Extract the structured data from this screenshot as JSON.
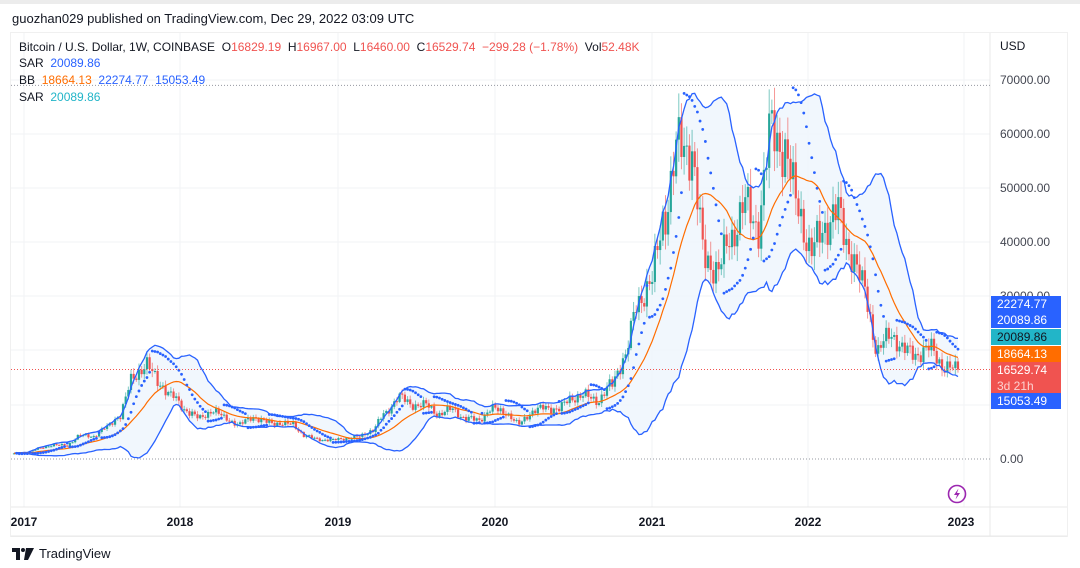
{
  "header": {
    "publisher": "guozhan029 published on TradingView.com, Dec 29, 2022 03:09 UTC"
  },
  "legend": {
    "symbol": "Bitcoin / U.S. Dollar, 1W, COINBASE",
    "o_label": "O",
    "o": "16829.19",
    "h_label": "H",
    "h": "16967.00",
    "l_label": "L",
    "l": "16460.00",
    "c_label": "C",
    "c": "16529.74",
    "change": "−299.28 (−1.78%)",
    "vol_label": "Vol",
    "vol": "52.48K",
    "sar1_label": "SAR",
    "sar1": "20089.86",
    "bb_label": "BB",
    "bb_basis": "18664.13",
    "bb_upper": "22274.77",
    "bb_lower": "15053.49",
    "sar2_label": "SAR",
    "sar2": "20089.86"
  },
  "price_axis": {
    "currency": "USD",
    "ticks": [
      "70000.00",
      "60000.00",
      "50000.00",
      "40000.00",
      "0.00"
    ],
    "hidden_tick": "30000.00",
    "tags": [
      {
        "value": "22274.77",
        "color": "#2962ff",
        "text_color": "#ffffff"
      },
      {
        "value": "20089.86",
        "color": "#2962ff",
        "text_color": "#ffffff"
      },
      {
        "value": "20089.86",
        "color": "#22b5c8",
        "text_color": "#131722"
      },
      {
        "value": "18664.13",
        "color": "#ff6d00",
        "text_color": "#ffffff"
      },
      {
        "value": "16529.74",
        "color": "#f05350",
        "text_color": "#ffffff",
        "countdown": "3d 21h"
      },
      {
        "value": "15053.49",
        "color": "#2962ff",
        "text_color": "#ffffff"
      }
    ]
  },
  "time_axis": {
    "years": [
      "2017",
      "2018",
      "2019",
      "2020",
      "2021",
      "2022",
      "2023"
    ]
  },
  "footer": {
    "brand": "TradingView"
  },
  "colors": {
    "up": "#26a69a",
    "down": "#f05350",
    "bb_band": "#2962ff",
    "bb_basis": "#ff6d00",
    "bb_fill": "#eef5fc",
    "sar": "#2962ff",
    "last_price_line": "#f05350"
  },
  "chart_data": {
    "type": "candlestick",
    "title": "Bitcoin / U.S. Dollar, 1W, COINBASE",
    "indicators": [
      "Parabolic SAR",
      "Bollinger Bands (20, 2)"
    ],
    "ylabel": "USD",
    "ylim": [
      -8000,
      74000
    ],
    "x_ticks": [
      "2017",
      "2018",
      "2019",
      "2020",
      "2021",
      "2022",
      "2023"
    ],
    "grid": true,
    "last": {
      "open": 16829.19,
      "high": 16967.0,
      "low": 16460.0,
      "close": 16529.74,
      "change": -299.28,
      "change_pct": -1.78,
      "volume": "52.48K"
    },
    "bb_last": {
      "basis": 18664.13,
      "upper": 22274.77,
      "lower": 15053.49
    },
    "sar_last": 20089.86,
    "weekly_close_keypoints": [
      [
        "2017-01",
        1000
      ],
      [
        "2017-03",
        1200
      ],
      [
        "2017-05",
        2000
      ],
      [
        "2017-06",
        2600
      ],
      [
        "2017-07",
        2500
      ],
      [
        "2017-08",
        4300
      ],
      [
        "2017-09",
        4200
      ],
      [
        "2017-10",
        5800
      ],
      [
        "2017-11",
        8000
      ],
      [
        "2017-12-a",
        15000
      ],
      [
        "2017-12-b",
        17500
      ],
      [
        "2017-12-c",
        14000
      ],
      [
        "2018-01",
        11500
      ],
      [
        "2018-02",
        9000
      ],
      [
        "2018-03",
        7500
      ],
      [
        "2018-04",
        9000
      ],
      [
        "2018-05",
        7500
      ],
      [
        "2018-06",
        6300
      ],
      [
        "2018-07",
        7800
      ],
      [
        "2018-08",
        6800
      ],
      [
        "2018-09",
        6600
      ],
      [
        "2018-10",
        6400
      ],
      [
        "2018-11",
        4200
      ],
      [
        "2018-12",
        3600
      ],
      [
        "2019-01",
        3500
      ],
      [
        "2019-02",
        3800
      ],
      [
        "2019-03",
        4100
      ],
      [
        "2019-04",
        5300
      ],
      [
        "2019-05",
        8500
      ],
      [
        "2019-06",
        11500
      ],
      [
        "2019-07",
        10000
      ],
      [
        "2019-08",
        10000
      ],
      [
        "2019-09",
        8300
      ],
      [
        "2019-10",
        9200
      ],
      [
        "2019-11",
        7500
      ],
      [
        "2019-12",
        7200
      ],
      [
        "2020-01",
        9300
      ],
      [
        "2020-02",
        8700
      ],
      [
        "2020-03",
        6400
      ],
      [
        "2020-04",
        8700
      ],
      [
        "2020-05",
        9500
      ],
      [
        "2020-06",
        9200
      ],
      [
        "2020-07",
        11300
      ],
      [
        "2020-08",
        11700
      ],
      [
        "2020-09",
        10800
      ],
      [
        "2020-10",
        13800
      ],
      [
        "2020-11",
        19000
      ],
      [
        "2020-12",
        29000
      ],
      [
        "2021-01",
        33000
      ],
      [
        "2021-02",
        45000
      ],
      [
        "2021-03",
        58000
      ],
      [
        "2021-04",
        57000
      ],
      [
        "2021-05",
        37000
      ],
      [
        "2021-06",
        35000
      ],
      [
        "2021-07",
        41000
      ],
      [
        "2021-08",
        47000
      ],
      [
        "2021-09",
        43000
      ],
      [
        "2021-10",
        61000
      ],
      [
        "2021-11",
        57000
      ],
      [
        "2021-12",
        47000
      ],
      [
        "2022-01",
        38000
      ],
      [
        "2022-02",
        43000
      ],
      [
        "2022-03",
        45500
      ],
      [
        "2022-04",
        38000
      ],
      [
        "2022-05",
        31500
      ],
      [
        "2022-06",
        19800
      ],
      [
        "2022-07",
        23300
      ],
      [
        "2022-08",
        20000
      ],
      [
        "2022-09",
        19400
      ],
      [
        "2022-10",
        20500
      ],
      [
        "2022-11",
        17000
      ],
      [
        "2022-12",
        16530
      ]
    ]
  }
}
